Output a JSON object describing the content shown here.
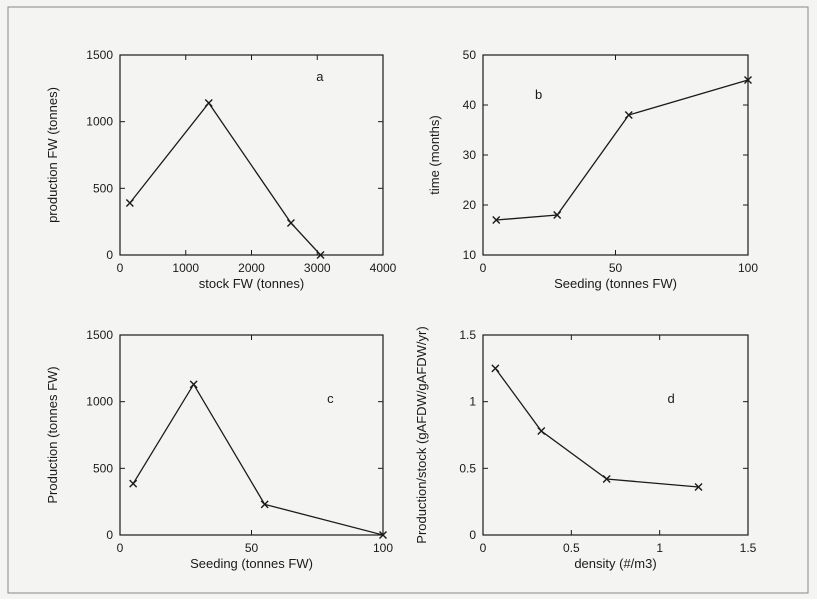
{
  "chart_data": [
    {
      "type": "line",
      "panel_label": "a",
      "xlabel": "stock FW (tonnes)",
      "ylabel": "production FW (tonnes)",
      "xlim": [
        0,
        4000
      ],
      "ylim": [
        0,
        1500
      ],
      "xticks": [
        0,
        1000,
        2000,
        3000,
        4000
      ],
      "yticks": [
        0,
        500,
        1000,
        1500
      ],
      "x": [
        150,
        1350,
        2600,
        3050
      ],
      "y": [
        390,
        1140,
        240,
        0
      ],
      "marker": "x",
      "grid": false
    },
    {
      "type": "line",
      "panel_label": "b",
      "xlabel": "Seeding (tonnes FW)",
      "ylabel": "time (months)",
      "xlim": [
        0,
        100
      ],
      "ylim": [
        10,
        50
      ],
      "xticks": [
        0,
        50,
        100
      ],
      "yticks": [
        10,
        20,
        30,
        40,
        50
      ],
      "x": [
        5,
        28,
        55,
        100
      ],
      "y": [
        17,
        18,
        38,
        45
      ],
      "marker": "x",
      "grid": false
    },
    {
      "type": "line",
      "panel_label": "c",
      "xlabel": "Seeding (tonnes FW)",
      "ylabel": "Production (tonnes FW)",
      "xlim": [
        0,
        100
      ],
      "ylim": [
        0,
        1500
      ],
      "xticks": [
        0,
        50,
        100
      ],
      "yticks": [
        0,
        500,
        1000,
        1500
      ],
      "x": [
        5,
        28,
        55,
        100
      ],
      "y": [
        385,
        1130,
        230,
        0
      ],
      "marker": "x",
      "grid": false
    },
    {
      "type": "line",
      "panel_label": "d",
      "xlabel": "density (#/m3)",
      "ylabel": "Production/stock (gAFDW/gAFDW/yr)",
      "xlim": [
        0,
        1.5
      ],
      "ylim": [
        0,
        1.5
      ],
      "xticks": [
        0,
        0.5,
        1,
        1.5
      ],
      "yticks": [
        0,
        0.5,
        1,
        1.5
      ],
      "x": [
        0.07,
        0.33,
        0.7,
        1.22
      ],
      "y": [
        1.25,
        0.78,
        0.42,
        0.36
      ],
      "marker": "x",
      "grid": false
    }
  ]
}
